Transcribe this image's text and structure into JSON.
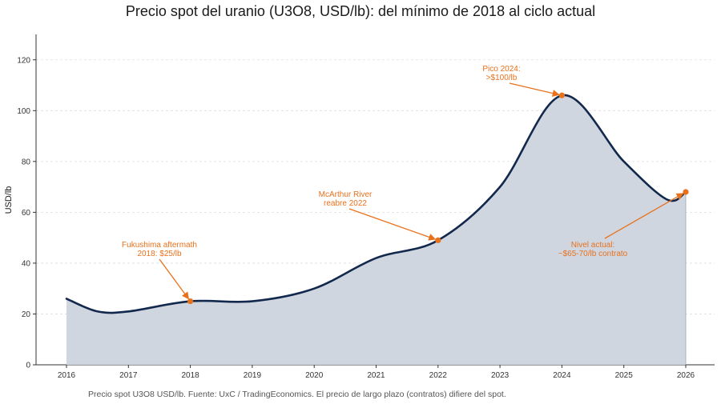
{
  "chart_data": {
    "type": "area",
    "title": "Precio spot del uranio (U3O8, USD/lb): del mínimo de 2018 al ciclo actual",
    "ylabel": "USD/lb",
    "xlabel": "",
    "xlim": [
      2016,
      2026
    ],
    "ylim": [
      0,
      130
    ],
    "x_ticks": [
      2016,
      2017,
      2018,
      2019,
      2020,
      2021,
      2022,
      2023,
      2024,
      2025,
      2026
    ],
    "y_ticks": [
      0,
      20,
      40,
      60,
      80,
      100,
      120
    ],
    "grid": "horizontal dashed",
    "series": [
      {
        "x": [
          2016,
          2016.5,
          2017,
          2018,
          2019,
          2020,
          2021,
          2022,
          2023,
          2024,
          2025,
          2025.7,
          2026
        ],
        "y": [
          26,
          21,
          21,
          25,
          25,
          30,
          42,
          49,
          70,
          106,
          80,
          65,
          68
        ]
      }
    ],
    "annotations": [
      {
        "lines": [
          "Fukushima aftermath",
          "2018: $25/lb"
        ],
        "x": 2018,
        "y": 25
      },
      {
        "lines": [
          "McArthur River",
          "reabre 2022"
        ],
        "x": 2022,
        "y": 49
      },
      {
        "lines": [
          "Pico 2024:",
          ">$100/lb"
        ],
        "x": 2024,
        "y": 106
      },
      {
        "lines": [
          "Nivel actual:",
          "~$65-70/lb contrato"
        ],
        "x": 2026,
        "y": 68
      }
    ],
    "colors": {
      "line": "#12284c",
      "fill": "#ccd4de",
      "annotation": "#e8711c",
      "grid": "#dddddd"
    },
    "footnote": "Precio spot U3O8 USD/lb. Fuente: UxC / TradingEconomics. El precio de largo plazo (contratos) difiere del spot."
  }
}
